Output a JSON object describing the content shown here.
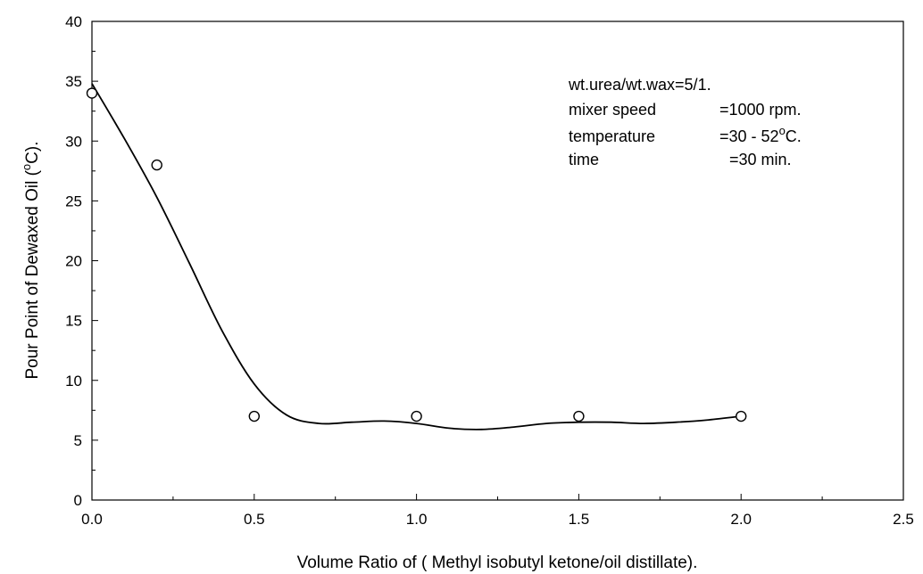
{
  "chart_data": {
    "type": "scatter",
    "title": "",
    "xlabel": "Volume Ratio of ( Methyl isobutyl ketone/oil distillate).",
    "ylabel_parts": [
      "Pour Point of Dewaxed Oil (",
      "o",
      "C)."
    ],
    "xlim": [
      0.0,
      2.5
    ],
    "ylim": [
      0,
      40
    ],
    "x_ticks": [
      "0.0",
      "0.5",
      "1.0",
      "1.5",
      "2.0",
      "2.5"
    ],
    "y_ticks": [
      "0",
      "5",
      "10",
      "15",
      "20",
      "25",
      "30",
      "35",
      "40"
    ],
    "grid": false,
    "series": [
      {
        "marker": "open-circle",
        "x": [
          0.0,
          0.2,
          0.5,
          1.0,
          1.5,
          2.0
        ],
        "y": [
          34,
          28,
          7,
          7,
          7,
          7
        ]
      }
    ],
    "fit_curve": {
      "x": [
        0.0,
        0.1,
        0.2,
        0.3,
        0.4,
        0.5,
        0.6,
        0.7,
        0.8,
        0.9,
        1.0,
        1.1,
        1.2,
        1.3,
        1.4,
        1.5,
        1.6,
        1.7,
        1.8,
        1.9,
        2.0
      ],
      "y": [
        34.8,
        30.2,
        25.3,
        19.8,
        14.2,
        9.7,
        7.1,
        6.4,
        6.5,
        6.6,
        6.4,
        6.0,
        5.9,
        6.1,
        6.4,
        6.5,
        6.5,
        6.4,
        6.5,
        6.7,
        7.0
      ]
    },
    "annotations": [
      {
        "label": "wt.urea/wt.wax=5/1.",
        "value": ""
      },
      {
        "label": "mixer speed",
        "value": "=1000 rpm."
      },
      {
        "label": "temperature",
        "value": "=30 - 52",
        "sup": "o",
        "suffix": "C."
      },
      {
        "label": "time",
        "value": "=30 min."
      }
    ]
  }
}
